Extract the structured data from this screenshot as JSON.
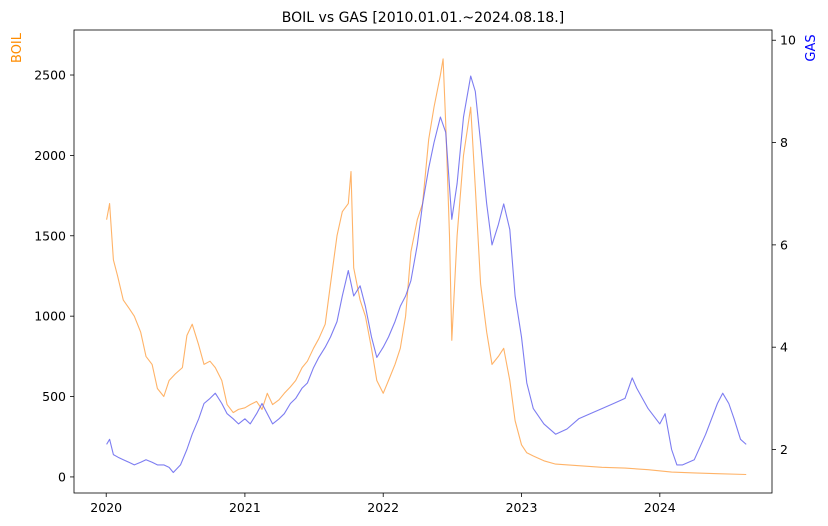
{
  "chart_data": {
    "type": "line",
    "title": "BOIL vs GAS [2010.01.01.~2024.08.18.]",
    "x_type": "date",
    "xlim": [
      "2019-10-08",
      "2024-10-23"
    ],
    "x_ticks": [
      "2020",
      "2021",
      "2022",
      "2023",
      "2024"
    ],
    "left_axis": {
      "label": "BOIL",
      "color": "#ff8c00",
      "ylim": [
        -100,
        2780
      ],
      "ticks": [
        "0",
        "500",
        "1000",
        "1500",
        "2000",
        "2500"
      ]
    },
    "right_axis": {
      "label": "GAS",
      "color": "#0000ff",
      "ylim": [
        1.15,
        10.2
      ],
      "ticks": [
        "2",
        "4",
        "6",
        "8",
        "10"
      ]
    },
    "grid": false,
    "series": [
      {
        "name": "BOIL",
        "axis": "left",
        "color": "#ffa64d",
        "x": [
          "2020-01-02",
          "2020-01-10",
          "2020-01-20",
          "2020-01-31",
          "2020-02-15",
          "2020-03-01",
          "2020-03-15",
          "2020-04-01",
          "2020-04-15",
          "2020-05-01",
          "2020-05-15",
          "2020-06-01",
          "2020-06-15",
          "2020-07-01",
          "2020-07-20",
          "2020-08-01",
          "2020-08-15",
          "2020-09-01",
          "2020-09-15",
          "2020-10-01",
          "2020-10-15",
          "2020-11-01",
          "2020-11-15",
          "2020-12-01",
          "2020-12-15",
          "2021-01-01",
          "2021-01-15",
          "2021-02-01",
          "2021-02-15",
          "2021-03-01",
          "2021-03-15",
          "2021-04-01",
          "2021-04-15",
          "2021-05-01",
          "2021-05-15",
          "2021-06-01",
          "2021-06-15",
          "2021-07-01",
          "2021-07-15",
          "2021-08-01",
          "2021-08-15",
          "2021-09-01",
          "2021-09-15",
          "2021-10-01",
          "2021-10-08",
          "2021-10-15",
          "2021-11-01",
          "2021-11-15",
          "2021-12-01",
          "2021-12-15",
          "2022-01-01",
          "2022-01-15",
          "2022-02-01",
          "2022-02-15",
          "2022-03-01",
          "2022-03-15",
          "2022-04-01",
          "2022-04-15",
          "2022-05-01",
          "2022-05-15",
          "2022-06-01",
          "2022-06-08",
          "2022-06-15",
          "2022-06-25",
          "2022-07-01",
          "2022-07-15",
          "2022-08-01",
          "2022-08-20",
          "2022-09-01",
          "2022-09-15",
          "2022-10-01",
          "2022-10-15",
          "2022-11-01",
          "2022-11-15",
          "2022-12-01",
          "2022-12-15",
          "2023-01-01",
          "2023-01-15",
          "2023-02-01",
          "2023-03-01",
          "2023-04-01",
          "2023-06-01",
          "2023-08-01",
          "2023-10-01",
          "2023-12-01",
          "2024-02-01",
          "2024-04-01",
          "2024-06-01",
          "2024-08-16"
        ],
        "values": [
          1600,
          1700,
          1350,
          1250,
          1100,
          1050,
          1000,
          900,
          750,
          700,
          550,
          500,
          600,
          640,
          680,
          880,
          950,
          820,
          700,
          720,
          680,
          600,
          450,
          400,
          420,
          430,
          450,
          470,
          420,
          520,
          450,
          480,
          520,
          560,
          600,
          680,
          720,
          800,
          860,
          950,
          1200,
          1500,
          1650,
          1700,
          1900,
          1300,
          1100,
          1000,
          800,
          600,
          520,
          600,
          700,
          800,
          1000,
          1400,
          1600,
          1700,
          2100,
          2300,
          2500,
          2600,
          2200,
          1500,
          850,
          1500,
          2000,
          2300,
          1800,
          1200,
          900,
          700,
          750,
          800,
          600,
          350,
          200,
          150,
          130,
          100,
          80,
          70,
          60,
          55,
          45,
          30,
          25,
          20,
          15
        ]
      },
      {
        "name": "GAS",
        "axis": "right",
        "color": "#6666ee",
        "x": [
          "2020-01-02",
          "2020-01-10",
          "2020-01-20",
          "2020-02-01",
          "2020-02-15",
          "2020-03-01",
          "2020-03-15",
          "2020-04-01",
          "2020-04-15",
          "2020-05-01",
          "2020-05-15",
          "2020-06-01",
          "2020-06-15",
          "2020-06-26",
          "2020-07-15",
          "2020-08-01",
          "2020-08-15",
          "2020-09-01",
          "2020-09-15",
          "2020-10-01",
          "2020-10-15",
          "2020-11-01",
          "2020-11-15",
          "2020-12-01",
          "2020-12-15",
          "2021-01-01",
          "2021-01-15",
          "2021-02-01",
          "2021-02-15",
          "2021-03-01",
          "2021-03-15",
          "2021-04-01",
          "2021-04-15",
          "2021-05-01",
          "2021-05-15",
          "2021-06-01",
          "2021-06-15",
          "2021-07-01",
          "2021-07-15",
          "2021-08-01",
          "2021-08-15",
          "2021-09-01",
          "2021-09-15",
          "2021-10-01",
          "2021-10-15",
          "2021-11-01",
          "2021-11-15",
          "2021-12-01",
          "2021-12-15",
          "2022-01-01",
          "2022-01-15",
          "2022-02-01",
          "2022-02-15",
          "2022-03-01",
          "2022-03-15",
          "2022-04-01",
          "2022-04-15",
          "2022-05-01",
          "2022-05-15",
          "2022-06-01",
          "2022-06-15",
          "2022-07-01",
          "2022-07-15",
          "2022-08-01",
          "2022-08-20",
          "2022-09-01",
          "2022-09-15",
          "2022-10-01",
          "2022-10-15",
          "2022-11-01",
          "2022-11-15",
          "2022-12-01",
          "2022-12-15",
          "2023-01-01",
          "2023-01-15",
          "2023-02-01",
          "2023-03-01",
          "2023-04-01",
          "2023-05-01",
          "2023-06-01",
          "2023-07-01",
          "2023-08-01",
          "2023-09-01",
          "2023-10-01",
          "2023-10-20",
          "2023-11-01",
          "2023-12-01",
          "2024-01-01",
          "2024-01-15",
          "2024-02-01",
          "2024-02-15",
          "2024-03-01",
          "2024-04-01",
          "2024-05-01",
          "2024-06-01",
          "2024-06-15",
          "2024-07-01",
          "2024-07-15",
          "2024-08-01",
          "2024-08-16"
        ],
        "values": [
          2.1,
          2.2,
          1.9,
          1.85,
          1.8,
          1.75,
          1.7,
          1.75,
          1.8,
          1.75,
          1.7,
          1.7,
          1.65,
          1.55,
          1.7,
          2.0,
          2.3,
          2.6,
          2.9,
          3.0,
          3.1,
          2.9,
          2.7,
          2.6,
          2.5,
          2.6,
          2.5,
          2.7,
          2.9,
          2.7,
          2.5,
          2.6,
          2.7,
          2.9,
          3.0,
          3.2,
          3.3,
          3.6,
          3.8,
          4.0,
          4.2,
          4.5,
          5.0,
          5.5,
          5.0,
          5.2,
          4.8,
          4.2,
          3.8,
          4.0,
          4.2,
          4.5,
          4.8,
          5.0,
          5.3,
          6.0,
          6.8,
          7.5,
          8.0,
          8.5,
          8.2,
          6.5,
          7.2,
          8.5,
          9.3,
          9.0,
          8.0,
          6.8,
          6.0,
          6.4,
          6.8,
          6.3,
          5.0,
          4.2,
          3.3,
          2.8,
          2.5,
          2.3,
          2.4,
          2.6,
          2.7,
          2.8,
          2.9,
          3.0,
          3.4,
          3.2,
          2.8,
          2.5,
          2.7,
          2.0,
          1.7,
          1.7,
          1.8,
          2.3,
          2.9,
          3.1,
          2.9,
          2.6,
          2.2,
          2.1
        ]
      }
    ]
  }
}
